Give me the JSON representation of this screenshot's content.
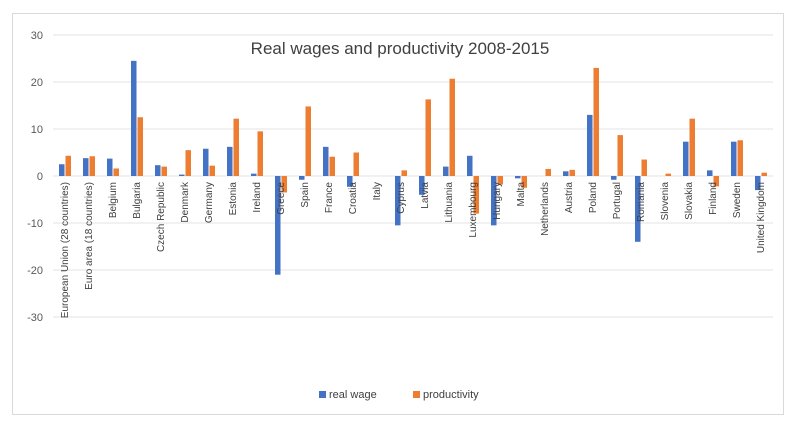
{
  "chart_data": {
    "type": "bar",
    "title": "Real wages and productivity 2008-2015",
    "xlabel": "",
    "ylabel": "",
    "ylim": [
      -30,
      30
    ],
    "yticks": [
      30,
      20,
      10,
      0,
      -10,
      -20,
      -30
    ],
    "grid": true,
    "legend_position": "bottom",
    "categories": [
      "European Union (28 countries)",
      "Euro area (18 countries)",
      "Belgium",
      "Bulgaria",
      "Czech Republic",
      "Denmark",
      "Germany",
      "Estonia",
      "Ireland",
      "Greece",
      "Spain",
      "France",
      "Croatia",
      "Italy",
      "Cyprus",
      "Latvia",
      "Lithuania",
      "Luxembourg",
      "Hungary",
      "Malta",
      "Netherlands",
      "Austria",
      "Poland",
      "Portugal",
      "Romania",
      "Slovenia",
      "Slovakia",
      "Finland",
      "Sweden",
      "United Kingdom"
    ],
    "series": [
      {
        "name": "real wage",
        "color": "#4472C4",
        "values": [
          2.5,
          3.8,
          3.7,
          24.5,
          2.3,
          0.3,
          5.8,
          6.2,
          0.5,
          -21.0,
          -0.8,
          6.2,
          -2.3,
          0.0,
          -10.5,
          -4.0,
          2.0,
          4.3,
          -10.5,
          -0.5,
          0.0,
          1.0,
          13.0,
          -0.8,
          -14.0,
          0.0,
          7.3,
          1.2,
          7.3,
          -3.0
        ]
      },
      {
        "name": "productivity",
        "color": "#ED7D31",
        "values": [
          4.3,
          4.2,
          1.6,
          12.5,
          2.0,
          5.5,
          2.2,
          12.2,
          9.5,
          -3.5,
          14.8,
          4.1,
          5.0,
          0.0,
          1.2,
          16.3,
          20.7,
          -8.0,
          -1.8,
          -2.5,
          1.5,
          1.3,
          23.0,
          8.7,
          3.5,
          0.5,
          12.2,
          -2.2,
          7.6,
          0.7
        ]
      }
    ]
  }
}
